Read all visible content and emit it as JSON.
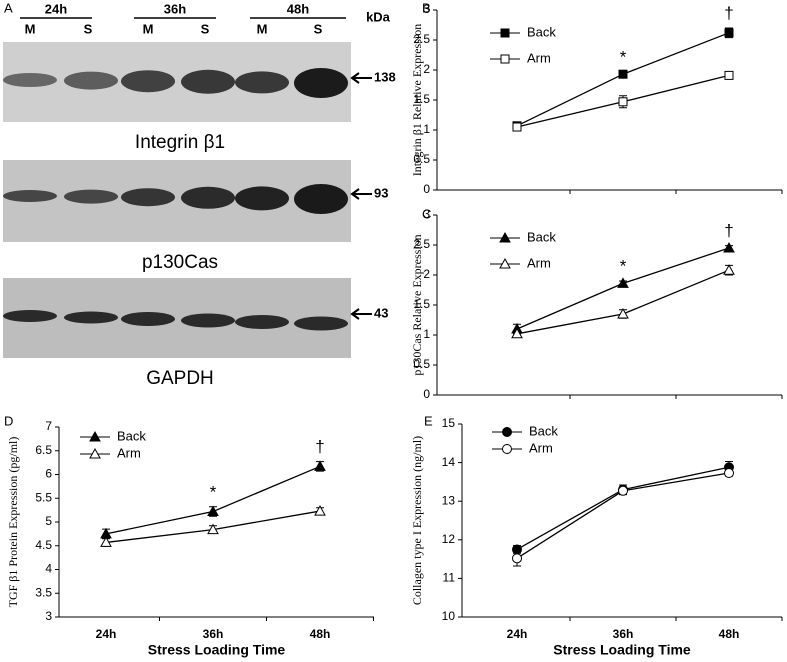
{
  "panel_letters": [
    "A",
    "B",
    "C",
    "D",
    "E"
  ],
  "blot": {
    "time_labels": [
      "24h",
      "36h",
      "48h"
    ],
    "lane_labels": [
      "M",
      "S",
      "M",
      "S",
      "M",
      "S"
    ],
    "unit": "kDa",
    "panels": [
      {
        "name": "Integrin β1",
        "size": 138
      },
      {
        "name": "p130Cas",
        "size": 93
      },
      {
        "name": "GAPDH",
        "size": 43
      }
    ]
  },
  "chart_data": [
    {
      "type": "line",
      "ylabel": "Integrin β1 Relative Expression",
      "categories": [
        null,
        null,
        null
      ],
      "ylim": [
        0,
        3
      ],
      "yticks": [
        0,
        0.5,
        1,
        1.5,
        2,
        2.5,
        3
      ],
      "annotations": [
        null,
        "*",
        "†"
      ],
      "series": [
        {
          "name": "Back",
          "color": "#000000",
          "marker": "square",
          "marker_fill": "#000000",
          "values": [
            1.07,
            1.93,
            2.62
          ],
          "errors": [
            0.03,
            0.04,
            0.08
          ]
        },
        {
          "name": "Arm",
          "color": "#000000",
          "marker": "square",
          "marker_fill": "#ffffff",
          "values": [
            1.05,
            1.47,
            1.91
          ],
          "errors": [
            0.03,
            0.1,
            0.03
          ]
        }
      ]
    },
    {
      "type": "line",
      "ylabel": "p130Cas Relative Expression",
      "categories": [
        null,
        null,
        null
      ],
      "ylim": [
        0,
        3
      ],
      "yticks": [
        0,
        0.5,
        1,
        1.5,
        2,
        2.5,
        3
      ],
      "annotations": [
        null,
        "*",
        "†"
      ],
      "series": [
        {
          "name": "Back",
          "color": "#000000",
          "marker": "triangle",
          "marker_fill": "#000000",
          "values": [
            1.1,
            1.86,
            2.45
          ],
          "errors": [
            0.08,
            0.04,
            0.04
          ]
        },
        {
          "name": "Arm",
          "color": "#000000",
          "marker": "triangle",
          "marker_fill": "#ffffff",
          "values": [
            1.02,
            1.35,
            2.08
          ],
          "errors": [
            0.04,
            0.07,
            0.08
          ]
        }
      ]
    },
    {
      "type": "line",
      "ylabel": "TGF β1 Protein Expression (pg/ml)",
      "xlabel": "Stress Loading Time",
      "categories": [
        "24h",
        "36h",
        "48h"
      ],
      "ylim": [
        3,
        7
      ],
      "yticks": [
        3,
        3.5,
        4,
        4.5,
        5,
        5.5,
        6,
        6.5,
        7
      ],
      "annotations": [
        null,
        "*",
        "†"
      ],
      "series": [
        {
          "name": "Back",
          "color": "#000000",
          "marker": "triangle",
          "marker_fill": "#000000",
          "values": [
            4.75,
            5.22,
            6.17
          ],
          "errors": [
            0.1,
            0.1,
            0.1
          ]
        },
        {
          "name": "Arm",
          "color": "#000000",
          "marker": "triangle",
          "marker_fill": "#ffffff",
          "values": [
            4.57,
            4.84,
            5.23
          ],
          "errors": [
            0.08,
            0.08,
            0.07
          ]
        }
      ]
    },
    {
      "type": "line",
      "ylabel": "Collagen type I Expression (ng/ml)",
      "xlabel": "Stress Loading Time",
      "categories": [
        "24h",
        "36h",
        "48h"
      ],
      "ylim": [
        10,
        15
      ],
      "yticks": [
        10,
        11,
        12,
        13,
        14,
        15
      ],
      "series": [
        {
          "name": "Back",
          "color": "#000000",
          "marker": "circle",
          "marker_fill": "#000000",
          "values": [
            11.75,
            13.3,
            13.88
          ],
          "errors": [
            0.1,
            0.12,
            0.15
          ]
        },
        {
          "name": "Arm",
          "color": "#000000",
          "marker": "circle",
          "marker_fill": "#ffffff",
          "values": [
            11.52,
            13.27,
            13.73
          ],
          "errors": [
            0.2,
            0.1,
            0.08
          ]
        }
      ]
    }
  ]
}
